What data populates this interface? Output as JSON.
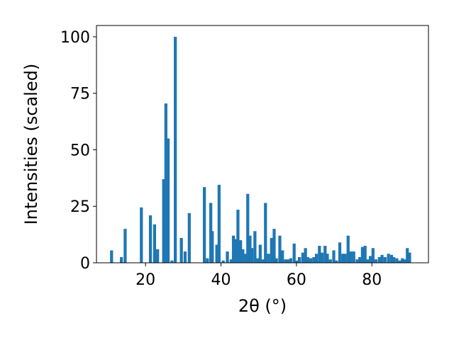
{
  "chart_data": {
    "type": "bar",
    "xlabel": "2θ (°)",
    "ylabel": "Intensities (scaled)",
    "xlim": [
      7,
      95
    ],
    "ylim": [
      0,
      105
    ],
    "x_ticks": [
      20,
      40,
      60,
      80
    ],
    "y_ticks": [
      0,
      25,
      50,
      75,
      100
    ],
    "grid": false,
    "bar_color": "#1f77b4",
    "bar_width": 0.8,
    "x": [
      11.0,
      13.6,
      14.6,
      18.9,
      21.3,
      22.4,
      23.2,
      24.8,
      25.4,
      26.0,
      27.0,
      27.9,
      29.5,
      30.5,
      31.6,
      35.6,
      36.4,
      37.3,
      37.7,
      38.9,
      39.5,
      40.6,
      41.7,
      42.7,
      43.3,
      43.9,
      44.5,
      45.2,
      45.8,
      46.6,
      47.1,
      47.7,
      48.2,
      49.0,
      49.7,
      50.4,
      51.2,
      51.8,
      52.6,
      53.4,
      54.1,
      54.7,
      55.6,
      56.3,
      57.1,
      57.8,
      58.5,
      59.4,
      60.1,
      60.8,
      61.7,
      62.4,
      63.0,
      63.8,
      64.6,
      65.3,
      66.1,
      66.8,
      67.6,
      68.2,
      69.0,
      69.9,
      70.6,
      71.5,
      72.3,
      72.9,
      73.7,
      74.4,
      75.2,
      76.1,
      76.8,
      77.5,
      78.2,
      78.9,
      79.6,
      80.3,
      81.1,
      82.0,
      82.7,
      83.5,
      84.4,
      85.2,
      85.8,
      86.6,
      87.4,
      88.1,
      88.8,
      89.4,
      90.0
    ],
    "values": [
      5.5,
      2.5,
      15.0,
      24.5,
      21.0,
      17.0,
      6.0,
      37.0,
      70.5,
      55.0,
      1.0,
      100.0,
      11.0,
      5.0,
      22.0,
      33.5,
      2.0,
      26.5,
      14.0,
      8.0,
      34.5,
      1.0,
      5.0,
      1.5,
      12.0,
      10.5,
      23.5,
      10.0,
      6.0,
      4.0,
      30.5,
      12.0,
      6.5,
      14.0,
      2.0,
      8.0,
      1.5,
      26.5,
      4.0,
      11.0,
      15.0,
      2.0,
      12.0,
      5.5,
      1.5,
      1.5,
      2.0,
      8.5,
      1.0,
      2.5,
      4.5,
      6.5,
      2.5,
      2.0,
      2.5,
      4.0,
      7.5,
      4.5,
      7.5,
      4.0,
      1.5,
      5.5,
      1.0,
      9.0,
      4.0,
      4.0,
      12.0,
      5.0,
      5.0,
      1.5,
      2.5,
      7.0,
      7.5,
      1.5,
      3.0,
      6.5,
      1.5,
      2.5,
      3.5,
      2.5,
      4.0,
      3.5,
      2.5,
      2.0,
      1.0,
      2.0,
      1.5,
      6.5,
      4.5
    ]
  }
}
